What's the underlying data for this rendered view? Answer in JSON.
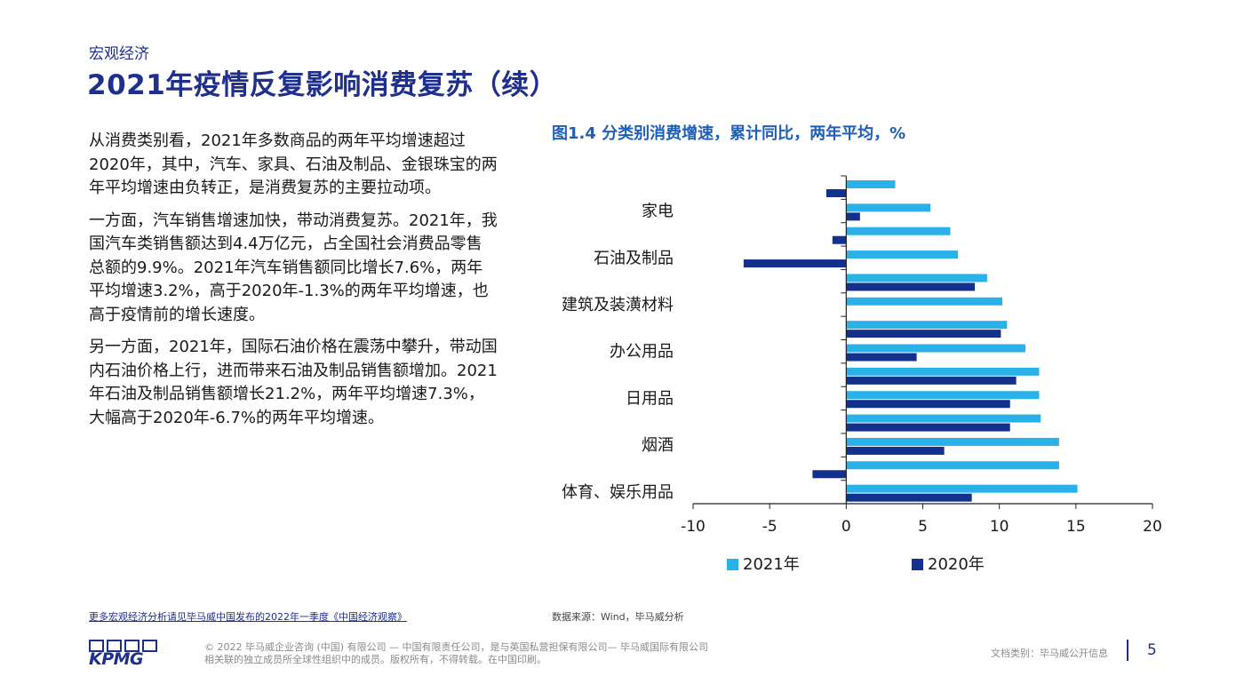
{
  "header": {
    "section": "宏观经济",
    "title": "2021年疫情反复影响消费复苏（续）"
  },
  "body": {
    "paragraphs": [
      "从消费类别看，2021年多数商品的两年平均增速超过2020年，其中，汽车、家具、石油及制品、金银珠宝的两年平均增速由负转正，是消费复苏的主要拉动项。",
      "一方面，汽车销售增速加快，带动消费复苏。2021年，我国汽车类销售额达到4.4万亿元，占全国社会消费品零售总额的9.9%。2021年汽车销售额同比增长7.6%，两年平均增速3.2%，高于2020年-1.3%的两年平均增速，也高于疫情前的增长速度。",
      "另一方面，2021年，国际石油价格在震荡中攀升，带动国内石油价格上行，进而带来石油及制品销售额增加。2021年石油及制品销售额增长21.2%，两年平均增速7.3%，大幅高于2020年-6.7%的两年平均增速。"
    ]
  },
  "chart_data": {
    "type": "bar",
    "orientation": "horizontal",
    "title": "图1.4 分类别消费增速，累计同比，两年平均，%",
    "categories": [
      "",
      "家电",
      "",
      "石油及制品",
      "",
      "建筑及装潢材料",
      "",
      "办公用品",
      "",
      "日用品",
      "",
      "烟酒",
      "",
      "体育、娱乐用品"
    ],
    "series": [
      {
        "name": "2021年",
        "color": "#29b1e8",
        "values": [
          3.2,
          5.5,
          6.8,
          7.3,
          9.2,
          10.2,
          10.5,
          11.7,
          12.6,
          12.6,
          12.7,
          13.9,
          13.9,
          15.1
        ]
      },
      {
        "name": "2020年",
        "color": "#12308c",
        "values": [
          -1.3,
          0.9,
          -0.9,
          -6.7,
          8.4,
          0,
          10.1,
          4.6,
          11.1,
          10.7,
          10.7,
          6.4,
          -2.2,
          8.2
        ]
      }
    ],
    "xlim": [
      -10,
      20
    ],
    "xticks": [
      "-10",
      "-5",
      "0",
      "5",
      "10",
      "15",
      "20"
    ],
    "legend_position": "bottom",
    "grid": false
  },
  "footer": {
    "footnote": "更多宏观经济分析请见毕马威中国发布的2022年一季度《中国经济观察》",
    "source": "数据来源：Wind，毕马威分析",
    "logo_text": "KPMG",
    "copyright_line1": "© 2022 毕马威企业咨询 (中国) 有限公司 — 中国有限责任公司，是与英国私营担保有限公司— 毕马威国际有限公司",
    "copyright_line2": "相关联的独立成员所全球性组织中的成员。版权所有，不得转载。在中国印刷。",
    "doc_class": "文档类别：毕马威公开信息",
    "page_number": "5"
  }
}
